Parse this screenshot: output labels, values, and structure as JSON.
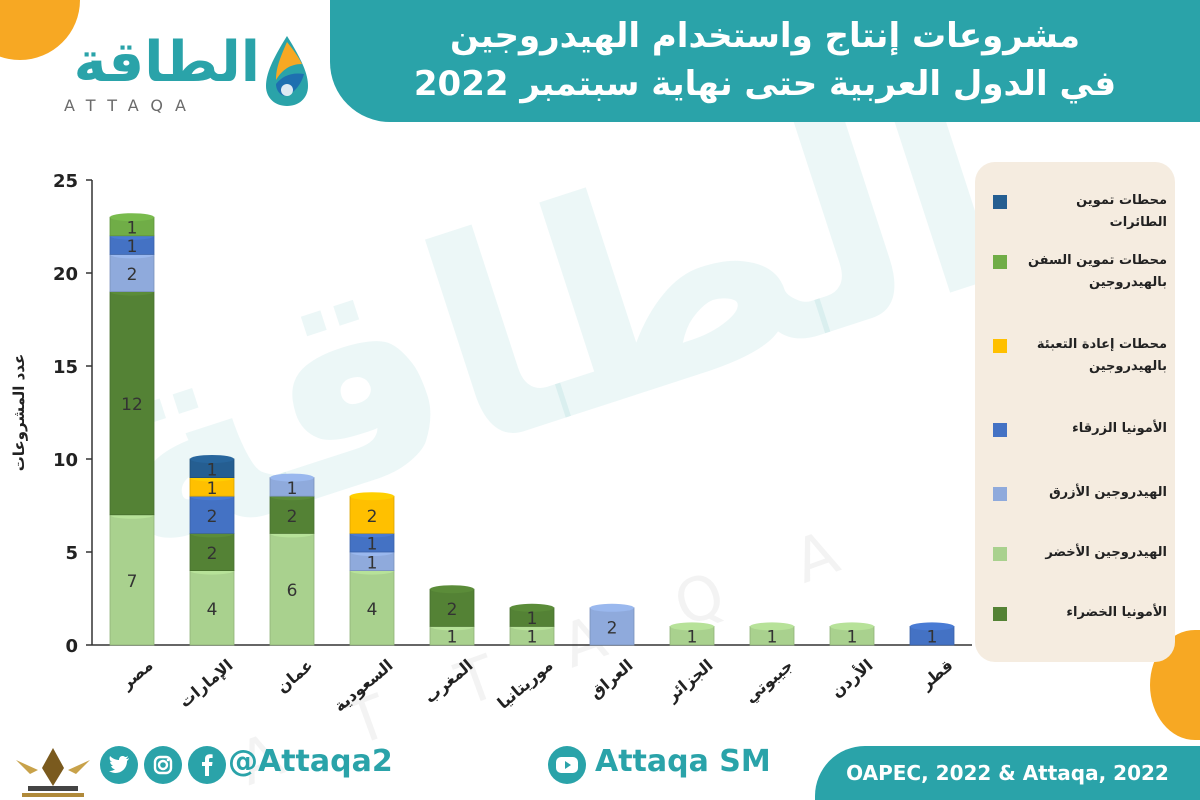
{
  "header": {
    "title_line1": "مشروعات إنتاج واستخدام الهيدروجين",
    "title_line2": "في الدول العربية حتى نهاية سبتمبر 2022"
  },
  "logo": {
    "text": "الطاقة",
    "sub": "ATTAQA"
  },
  "watermark": {
    "text": "الطاقة",
    "letters": "ATTAQA"
  },
  "colors": {
    "teal": "#2aa3a9",
    "orange": "#f7a823",
    "legend_bg": "#f5ece0"
  },
  "chart_data": {
    "type": "bar",
    "stacked": true,
    "categories": [
      "مصر",
      "الإمارات",
      "عمان",
      "السعودية",
      "المغرب",
      "موريتانيا",
      "العراق",
      "الجزائر",
      "جيبوتي",
      "الأردن",
      "قطر"
    ],
    "ylabel": "عدد المشروعات",
    "ylim": [
      0,
      25
    ],
    "yticks": [
      0,
      5,
      10,
      15,
      20,
      25
    ],
    "series": [
      {
        "name": "الهيدروجين الأخضر",
        "color": "#a9d18e",
        "values": [
          7,
          4,
          6,
          4,
          1,
          1,
          0,
          1,
          1,
          1,
          0
        ]
      },
      {
        "name": "الأمونيا الخضراء",
        "color": "#548235",
        "values": [
          12,
          2,
          2,
          0,
          2,
          1,
          0,
          0,
          0,
          0,
          0
        ]
      },
      {
        "name": "الهيدروجين الأزرق",
        "color": "#8faadc",
        "values": [
          2,
          0,
          1,
          1,
          0,
          0,
          2,
          0,
          0,
          0,
          0
        ]
      },
      {
        "name": "الأمونيا الزرقاء",
        "color": "#4472c4",
        "values": [
          1,
          2,
          0,
          1,
          0,
          0,
          0,
          0,
          0,
          0,
          1
        ]
      },
      {
        "name": "محطات إعادة التعبئة بالهيدروجين",
        "color": "#ffc000",
        "values": [
          0,
          1,
          0,
          2,
          0,
          0,
          0,
          0,
          0,
          0,
          0
        ]
      },
      {
        "name": "محطات تموين السفن بالهيدروجين",
        "color": "#70ad47",
        "values": [
          1,
          0,
          0,
          0,
          0,
          0,
          0,
          0,
          0,
          0,
          0
        ]
      },
      {
        "name": "محطات تموين الطائرات",
        "color": "#255e91",
        "values": [
          0,
          1,
          0,
          0,
          0,
          0,
          0,
          0,
          0,
          0,
          0
        ]
      }
    ],
    "legend_order": [
      "محطات تموين الطائرات",
      "محطات تموين السفن بالهيدروجين",
      "محطات إعادة التعبئة بالهيدروجين",
      "الأمونيا الزرقاء",
      "الهيدروجين الأزرق",
      "الهيدروجين الأخضر",
      "الأمونيا الخضراء"
    ],
    "legend_placement": "right"
  },
  "legend": [
    {
      "label": "محطات تموين الطائرات",
      "color": "#255e91"
    },
    {
      "label": "محطات تموين السفن بالهيدروجين",
      "color": "#70ad47"
    },
    {
      "label": "محطات إعادة التعبئة بالهيدروجين",
      "color": "#ffc000"
    },
    {
      "label": "الأمونيا الزرقاء",
      "color": "#4472c4"
    },
    {
      "label": "الهيدروجين الأزرق",
      "color": "#8faadc"
    },
    {
      "label": "الهيدروجين الأخضر",
      "color": "#a9d18e"
    },
    {
      "label": "الأمونيا الخضراء",
      "color": "#548235"
    }
  ],
  "footer": {
    "handle": "@Attaqa2",
    "youtube_handle": "Attaqa SM",
    "source": "OAPEC, 2022 & Attaqa, 2022",
    "icons": [
      "twitter-icon",
      "instagram-icon",
      "facebook-icon",
      "youtube-icon"
    ]
  }
}
